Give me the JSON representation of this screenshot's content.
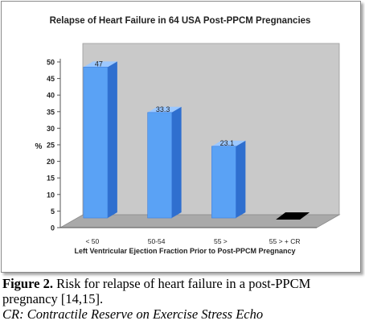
{
  "chart_data": {
    "type": "bar",
    "title": "Relapse of Heart Failure in 64 USA Post-PPCM Pregnancies",
    "xlabel": "Left Ventricular Ejection Fraction Prior to Post-PPCM Pregnancy",
    "ylabel": "%",
    "ylim": [
      0,
      50
    ],
    "yticks": [
      0,
      5,
      10,
      15,
      20,
      25,
      30,
      35,
      40,
      45,
      50
    ],
    "categories": [
      "< 50",
      "50-54",
      "55 >",
      "55 > + CR"
    ],
    "values": [
      47,
      33.3,
      23.1,
      0
    ],
    "data_labels": [
      "47",
      "33.3",
      "23.1",
      ""
    ],
    "grid": false,
    "colors": {
      "bar_front": "#5aa2f5",
      "bar_side": "#2f6fcf",
      "bar_top": "#9cc8ff",
      "zero_bar": "#000000",
      "wall": "#c9c9c9",
      "floor": "#a9a9a9"
    }
  },
  "caption": {
    "label": "Figure 2.",
    "text": "Risk for relapse of heart failure in a post-PPCM pregnancy [14,15].",
    "note": "CR: Contractile Reserve on Exercise Stress Echo"
  }
}
